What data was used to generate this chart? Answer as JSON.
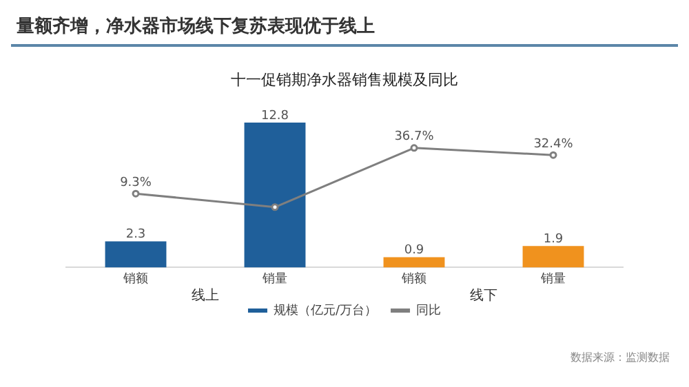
{
  "chart_data": {
    "type": "bar",
    "title": "量额齐增，净水器市场线下复苏表现优于线上",
    "subtitle": "十一促销期净水器销售规模及同比",
    "categories": [
      "销额",
      "销量",
      "销额",
      "销量"
    ],
    "series": [
      {
        "name": "规模（亿元/万台）",
        "color": "#1f5f9a",
        "colors": [
          "#1f5f9a",
          "#1f5f9a",
          "#f0921e",
          "#f0921e"
        ],
        "values": [
          2.3,
          12.8,
          0.9,
          1.9
        ],
        "data_labels": true
      },
      {
        "type": "line",
        "name": "同比",
        "color": "#7f7f7f",
        "axis": "y2",
        "values": [
          9.3,
          1.2,
          36.7,
          32.4
        ],
        "value_labels": [
          "9.3%",
          null,
          "36.7%",
          "32.4%"
        ]
      }
    ],
    "annotations": [
      "线上",
      "线下",
      "数据来源：监测数据"
    ],
    "legend": "bottom",
    "grid": false,
    "marker": "circle"
  }
}
